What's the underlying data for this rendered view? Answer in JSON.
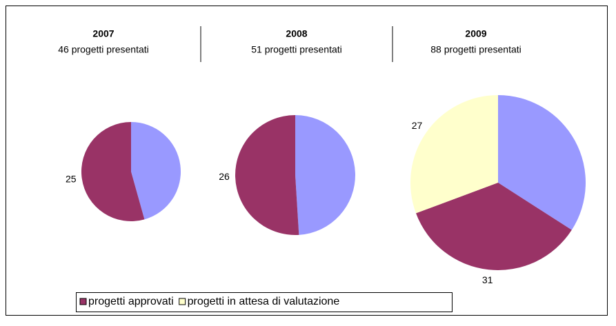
{
  "chart_data": [
    {
      "type": "pie",
      "title": "2007",
      "subtitle": "46 progetti presentati",
      "slices": [
        {
          "color": "#9999ff",
          "value": 21
        },
        {
          "name": "progetti approvati",
          "color": "#993366",
          "value": 25
        },
        {
          "name": "progetti in attesa di valutazione",
          "color": "#ffffcc",
          "value": 0
        }
      ]
    },
    {
      "type": "pie",
      "title": "2008",
      "subtitle": "51 progetti presentati",
      "slices": [
        {
          "color": "#9999ff",
          "value": 25
        },
        {
          "name": "progetti approvati",
          "color": "#993366",
          "value": 26
        },
        {
          "name": "progetti in attesa di valutazione",
          "color": "#ffffcc",
          "value": 0
        }
      ]
    },
    {
      "type": "pie",
      "title": "2009",
      "subtitle": "88 progetti presentati",
      "slices": [
        {
          "color": "#9999ff",
          "value": 30
        },
        {
          "name": "progetti approvati",
          "color": "#993366",
          "value": 31
        },
        {
          "name": "progetti in attesa di valutazione",
          "color": "#ffffcc",
          "value": 27
        }
      ]
    }
  ]
}
